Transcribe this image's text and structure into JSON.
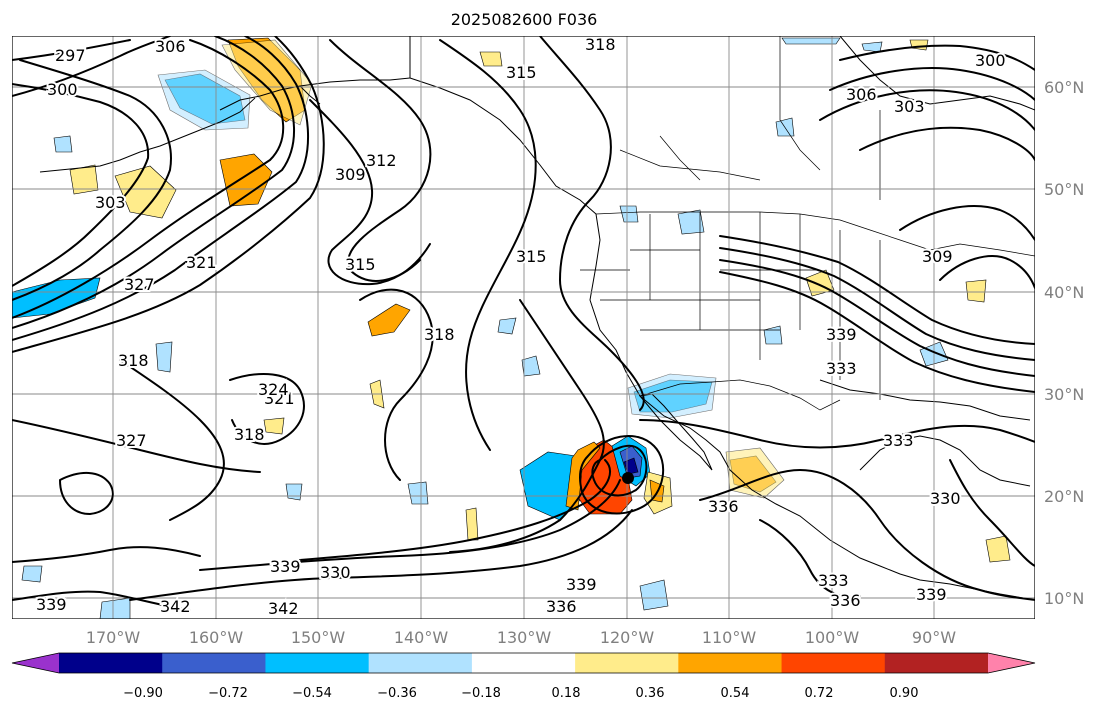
{
  "title": "2025082600 F036",
  "map": {
    "lon_labels": [
      "170°W",
      "160°W",
      "150°W",
      "140°W",
      "130°W",
      "120°W",
      "110°W",
      "100°W",
      "90°W"
    ],
    "lat_labels": [
      "60°N",
      "50°N",
      "40°N",
      "30°N",
      "20°N",
      "10°N"
    ],
    "contour_labels": [
      "297",
      "300",
      "300",
      "303",
      "306",
      "309",
      "312",
      "315",
      "315",
      "315",
      "318",
      "318",
      "318",
      "318",
      "321",
      "321",
      "324",
      "327",
      "327",
      "330",
      "330",
      "333",
      "333",
      "333",
      "336",
      "336",
      "336",
      "339",
      "339",
      "339",
      "339",
      "339",
      "342",
      "342",
      "303",
      "306",
      "309"
    ]
  },
  "colorbar": {
    "tick_labels": [
      "−0.90",
      "−0.72",
      "−0.54",
      "−0.36",
      "−0.18",
      "0.18",
      "0.36",
      "0.54",
      "0.72",
      "0.90"
    ],
    "colors": [
      "#9a32cd",
      "#00008b",
      "#3a5fcd",
      "#00bfff",
      "#b0e2ff",
      "#ffffff",
      "#ffec8b",
      "#ffa500",
      "#ff4500",
      "#b22222",
      "#ff82ab"
    ]
  }
}
